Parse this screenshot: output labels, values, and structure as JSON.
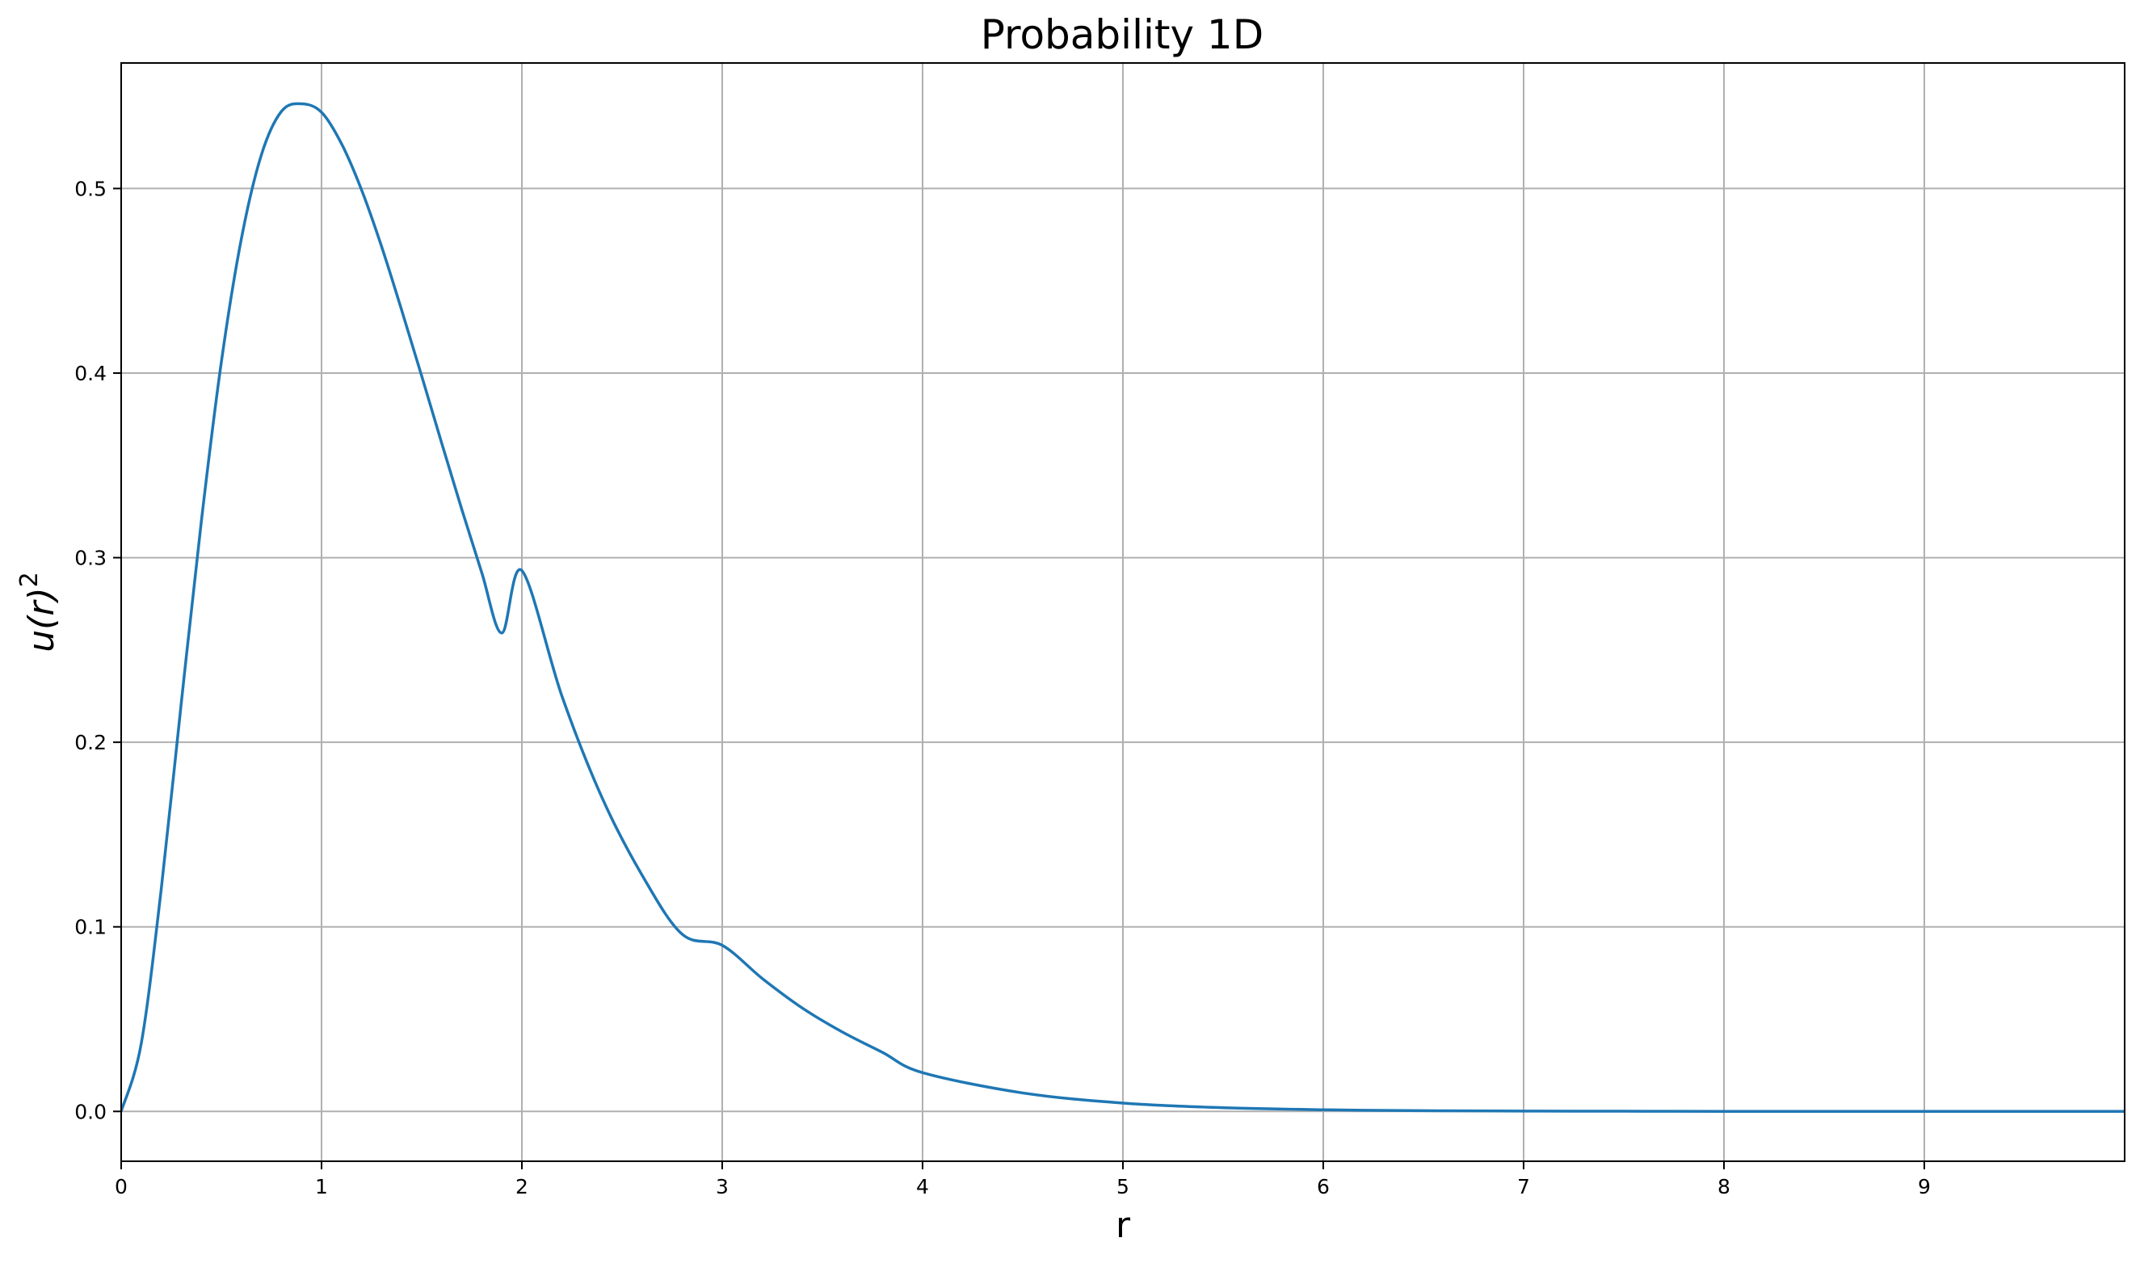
{
  "chart_data": {
    "type": "line",
    "title": "Probability 1D",
    "xlabel": "r",
    "ylabel": "u(r)",
    "ylabel_superscript": "2",
    "xlim": [
      0,
      10
    ],
    "ylim": [
      -0.027,
      0.568
    ],
    "grid": true,
    "x_ticks": [
      0,
      1,
      2,
      3,
      4,
      5,
      6,
      7,
      8,
      9
    ],
    "x_tick_labels": [
      "0",
      "1",
      "2",
      "3",
      "4",
      "5",
      "6",
      "7",
      "8",
      "9"
    ],
    "y_ticks": [
      0.0,
      0.1,
      0.2,
      0.3,
      0.4,
      0.5
    ],
    "y_tick_labels": [
      "0.0",
      "0.1",
      "0.2",
      "0.3",
      "0.4",
      "0.5"
    ],
    "series": [
      {
        "color": "#1f77b4",
        "x": [
          0,
          0.1,
          0.2,
          0.3,
          0.4,
          0.5,
          0.6,
          0.7,
          0.8,
          0.9,
          1.0,
          1.1,
          1.2,
          1.3,
          1.4,
          1.5,
          1.6,
          1.7,
          1.8,
          1.9,
          2.0,
          2.2,
          2.4,
          2.6,
          2.8,
          3.0,
          3.2,
          3.4,
          3.6,
          3.8,
          4.0,
          4.5,
          5.0,
          5.5,
          6.0,
          6.5,
          7.0,
          7.5,
          8.0,
          8.5,
          9.0,
          9.5,
          10.0
        ],
        "y": [
          0.0,
          0.0367,
          0.1205,
          0.2213,
          0.3196,
          0.406,
          0.4728,
          0.5183,
          0.5418,
          0.5459,
          0.5413,
          0.5242,
          0.4992,
          0.4685,
          0.4341,
          0.3984,
          0.362,
          0.3262,
          0.2918,
          0.2592,
          0.293,
          0.225,
          0.17,
          0.128,
          0.096,
          0.09,
          0.072,
          0.056,
          0.043,
          0.032,
          0.021,
          0.01,
          0.0045,
          0.002,
          0.0009,
          0.0004,
          0.0002,
          0.0001,
          0.0,
          0.0,
          0.0,
          0.0,
          0.0
        ]
      }
    ]
  }
}
